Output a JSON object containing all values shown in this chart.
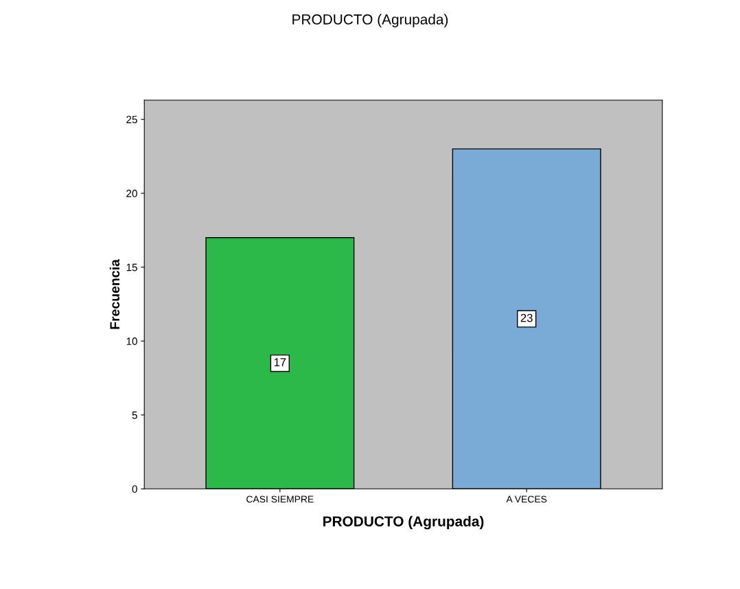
{
  "chart_data": {
    "type": "bar",
    "title": "PRODUCTO (Agrupada)",
    "xlabel": "PRODUCTO (Agrupada)",
    "ylabel": "Frecuencia",
    "categories": [
      "CASI SIEMPRE",
      "A VECES"
    ],
    "values": [
      17,
      23
    ],
    "colors": [
      "#2db84a",
      "#7aaad6"
    ],
    "ylim": [
      0,
      26.3
    ],
    "yticks": [
      0,
      5,
      10,
      15,
      20,
      25
    ],
    "data_labels": true,
    "grid": false,
    "legend": false
  }
}
